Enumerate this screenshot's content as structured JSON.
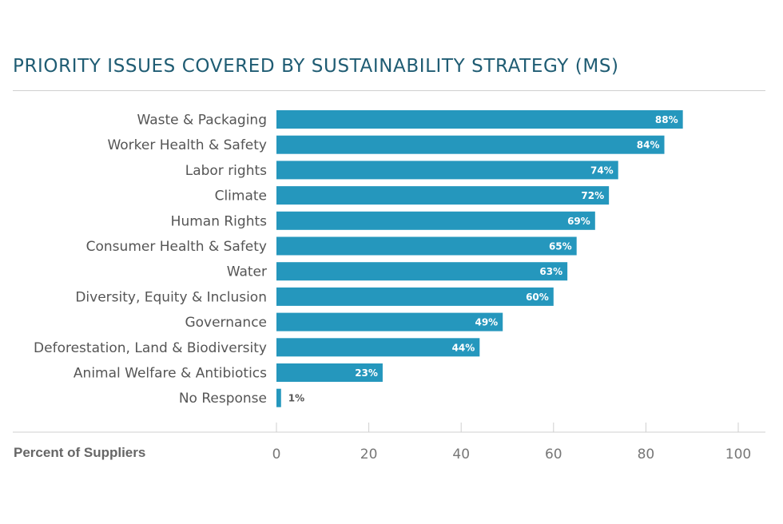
{
  "chart_data": {
    "type": "bar",
    "orientation": "horizontal",
    "title": "PRIORITY ISSUES COVERED BY SUSTAINABILITY STRATEGY (MS)",
    "xlabel": "Percent of Suppliers",
    "ylabel": "",
    "categories": [
      "Waste & Packaging",
      "Worker Health & Safety",
      "Labor rights",
      "Climate",
      "Human Rights",
      "Consumer Health & Safety",
      "Water",
      "Diversity, Equity & Inclusion",
      "Governance",
      "Deforestation, Land & Biodiversity",
      "Animal Welfare & Antibiotics",
      "No Response"
    ],
    "values": [
      88,
      84,
      74,
      72,
      69,
      65,
      63,
      60,
      49,
      44,
      23,
      1
    ],
    "data_labels": [
      "88%",
      "84%",
      "74%",
      "72%",
      "69%",
      "65%",
      "63%",
      "60%",
      "49%",
      "44%",
      "23%",
      "1%"
    ],
    "xlim": [
      0,
      100
    ],
    "xticks": [
      "0",
      "20",
      "40",
      "60",
      "80",
      "100"
    ],
    "grid": false,
    "legend": "none",
    "bar_color": "#2597bd"
  }
}
